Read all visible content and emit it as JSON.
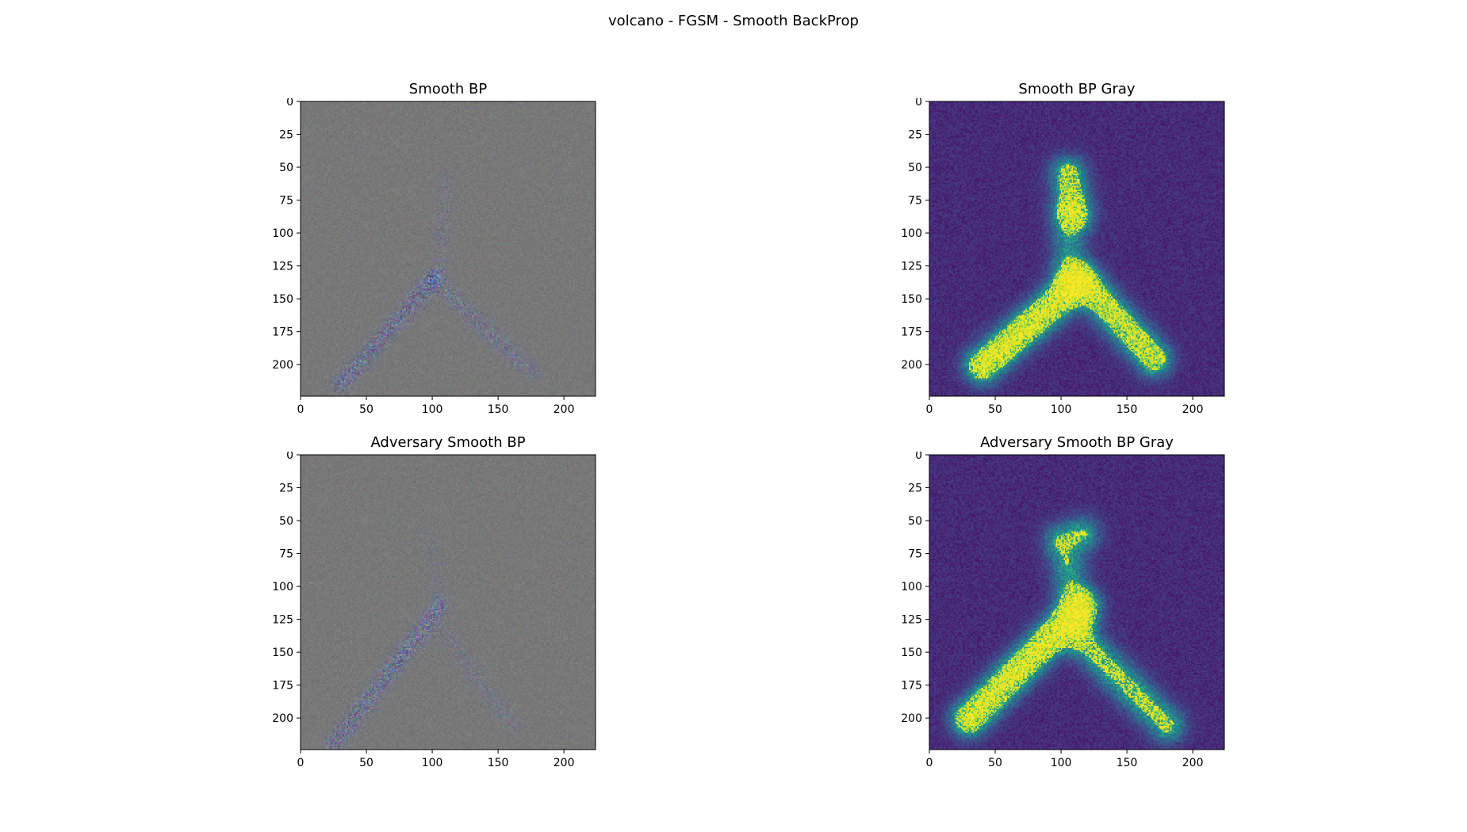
{
  "figure": {
    "suptitle": "volcano - FGSM - Smooth BackProp"
  },
  "colors": {
    "rgb_background": "#7a7a7a",
    "viridis_low": "#440154",
    "viridis_mid": "#21918c",
    "viridis_high": "#fde725",
    "axis": "#000000"
  },
  "chart_data": [
    {
      "type": "heatmap",
      "title": "Smooth BP",
      "colormap": "rgb",
      "image_size": [
        224,
        224
      ],
      "xlim": [
        0,
        224
      ],
      "ylim": [
        224,
        0
      ],
      "xticks": [
        0,
        50,
        100,
        150,
        200
      ],
      "yticks": [
        0,
        25,
        50,
        75,
        100,
        125,
        150,
        175,
        200
      ],
      "features": [
        {
          "from": [
            30,
            215
          ],
          "to": [
            100,
            135
          ],
          "intensity": 0.9
        },
        {
          "from": [
            100,
            135
          ],
          "to": [
            175,
            205
          ],
          "intensity": 0.55
        },
        {
          "from": [
            110,
            60
          ],
          "to": [
            105,
            130
          ],
          "intensity": 0.3
        }
      ]
    },
    {
      "type": "heatmap",
      "title": "Smooth BP Gray",
      "colormap": "viridis",
      "image_size": [
        224,
        224
      ],
      "xlim": [
        0,
        224
      ],
      "ylim": [
        224,
        0
      ],
      "xticks": [
        0,
        50,
        100,
        150,
        200
      ],
      "yticks": [
        0,
        25,
        50,
        75,
        100,
        125,
        150,
        175,
        200
      ],
      "features": [
        {
          "from": [
            40,
            200
          ],
          "to": [
            110,
            140
          ],
          "intensity": 1.0
        },
        {
          "from": [
            115,
            135
          ],
          "to": [
            170,
            195
          ],
          "intensity": 0.8
        },
        {
          "from": [
            105,
            55
          ],
          "to": [
            110,
            85
          ],
          "intensity": 0.7
        },
        {
          "from": [
            105,
            85
          ],
          "to": [
            105,
            135
          ],
          "intensity": 0.4
        }
      ]
    },
    {
      "type": "heatmap",
      "title": "Adversary Smooth BP",
      "colormap": "rgb",
      "image_size": [
        224,
        224
      ],
      "xlim": [
        0,
        224
      ],
      "ylim": [
        224,
        0
      ],
      "xticks": [
        0,
        50,
        100,
        150,
        200
      ],
      "yticks": [
        0,
        25,
        50,
        75,
        100,
        125,
        150,
        175,
        200
      ],
      "features": [
        {
          "from": [
            25,
            220
          ],
          "to": [
            105,
            115
          ],
          "intensity": 0.9
        },
        {
          "from": [
            110,
            135
          ],
          "to": [
            160,
            205
          ],
          "intensity": 0.35
        },
        {
          "from": [
            95,
            60
          ],
          "to": [
            105,
            110
          ],
          "intensity": 0.2
        }
      ]
    },
    {
      "type": "heatmap",
      "title": "Adversary Smooth BP Gray",
      "colormap": "viridis",
      "image_size": [
        224,
        224
      ],
      "xlim": [
        0,
        224
      ],
      "ylim": [
        224,
        0
      ],
      "xticks": [
        0,
        50,
        100,
        150,
        200
      ],
      "yticks": [
        0,
        25,
        50,
        75,
        100,
        125,
        150,
        175,
        200
      ],
      "features": [
        {
          "from": [
            30,
            200
          ],
          "to": [
            115,
            115
          ],
          "intensity": 1.0
        },
        {
          "from": [
            115,
            140
          ],
          "to": [
            180,
            205
          ],
          "intensity": 0.6
        },
        {
          "from": [
            100,
            65
          ],
          "to": [
            115,
            60
          ],
          "intensity": 0.55
        },
        {
          "from": [
            105,
            85
          ],
          "to": [
            110,
            125
          ],
          "intensity": 0.45
        }
      ]
    }
  ]
}
